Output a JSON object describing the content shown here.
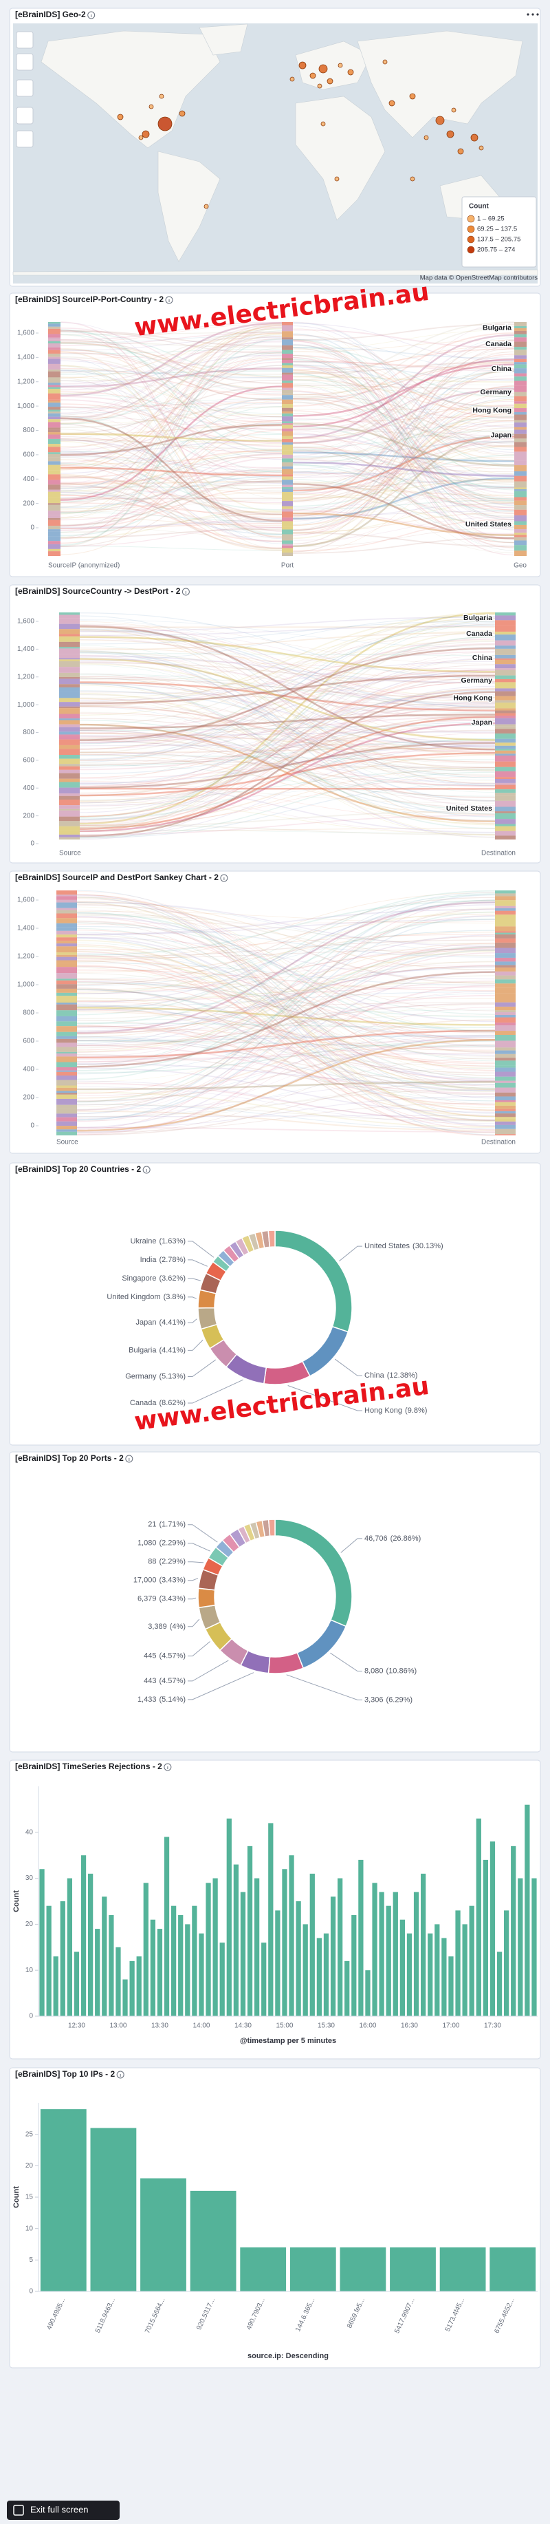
{
  "chart_data": [
    {
      "type": "map",
      "title": "[eBrainIDS] Geo-2",
      "legend_title": "Count",
      "legend_labels": [
        "1 – 69.25",
        "69.25 – 137.5",
        "137.5 – 205.75",
        "205.75 – 274"
      ],
      "legend_colors": [
        "#f6b26b",
        "#ec8a3a",
        "#dc6420",
        "#c23b0e"
      ],
      "attribution": "Map data © OpenStreetMap contributors"
    },
    {
      "type": "sankey",
      "title": "[eBrainIDS] SourceIP-Port-Country - 2",
      "ylim": [
        0,
        1600
      ],
      "yticks": [
        0,
        200,
        400,
        600,
        800,
        {
          "value": 1000,
          "label": "1,000"
        },
        {
          "value": 1200,
          "label": "1,200"
        },
        {
          "value": 1400,
          "label": "1,400"
        },
        {
          "value": 1600,
          "label": "1,600"
        }
      ],
      "axis_labels": [
        "SourceIP (anonymized)",
        "Port",
        "Geo"
      ],
      "node_labels": [
        "Bulgaria",
        "Canada",
        "China",
        "Germany",
        "Hong Kong",
        "Japan",
        "United States"
      ]
    },
    {
      "type": "sankey",
      "title": "[eBrainIDS] SourceCountry -> DestPort - 2",
      "ylim": [
        0,
        1600
      ],
      "yticks": [
        0,
        200,
        400,
        600,
        800,
        {
          "value": 1000,
          "label": "1,000"
        },
        {
          "value": 1200,
          "label": "1,200"
        },
        {
          "value": 1400,
          "label": "1,400"
        },
        {
          "value": 1600,
          "label": "1,600"
        }
      ],
      "axis_labels": [
        "Source",
        "Destination"
      ],
      "node_labels": [
        "Bulgaria",
        "Canada",
        "China",
        "Germany",
        "Hong Kong",
        "Japan",
        "United States"
      ]
    },
    {
      "type": "sankey",
      "title": "[eBrainIDS] SourceIP and DestPort Sankey Chart - 2",
      "ylim": [
        0,
        1600
      ],
      "yticks": [
        0,
        200,
        400,
        600,
        800,
        {
          "value": 1000,
          "label": "1,000"
        },
        {
          "value": 1200,
          "label": "1,200"
        },
        {
          "value": 1400,
          "label": "1,400"
        },
        {
          "value": 1600,
          "label": "1,600"
        }
      ],
      "axis_labels": [
        "Source",
        "Destination"
      ]
    },
    {
      "type": "donut",
      "title": "[eBrainIDS] Top 20 Countries - 2",
      "categories": [
        "United States",
        "China",
        "Hong Kong",
        "Canada",
        "Germany",
        "Bulgaria",
        "Japan",
        "United Kingdom",
        "Singapore",
        "India",
        "Ukraine",
        null,
        null,
        null,
        null,
        null,
        null,
        null,
        null,
        null
      ],
      "values": [
        30.13,
        12.38,
        9.8,
        8.62,
        5.13,
        4.41,
        4.41,
        3.8,
        3.62,
        2.78,
        1.63,
        1.6,
        1.6,
        1.5,
        1.5,
        1.5,
        1.4,
        1.4,
        1.4,
        1.39
      ],
      "value_labels": [
        "(30.13%)",
        "(12.38%)",
        "(9.8%)",
        "(8.62%)",
        "(5.13%)",
        "(4.41%)",
        "(4.41%)",
        "(3.8%)",
        "(3.62%)",
        "(2.78%)",
        "(1.63%)",
        null,
        null,
        null,
        null,
        null,
        null,
        null,
        null,
        null
      ],
      "colors": [
        "#54b399",
        "#6092c0",
        "#d36086",
        "#9170b8",
        "#ca8eae",
        "#d6bf57",
        "#b9a888",
        "#da8b45",
        "#aa6556",
        "#e7664c",
        "#7bc8b3",
        "#8fb0d6",
        "#e291ae",
        "#b29bcf",
        "#dbb3c8",
        "#e2d389",
        "#d0c5b0",
        "#e8b28b",
        "#c9a198",
        "#f0a393"
      ]
    },
    {
      "type": "donut",
      "title": "[eBrainIDS] Top 20 Ports - 2",
      "categories": [
        "46,706",
        "8,080",
        "3,306",
        "1,433",
        "443",
        "445",
        "3,389",
        "6,379",
        "17,000",
        "88",
        "1,080",
        "21",
        null,
        null,
        null,
        null,
        null,
        null,
        null,
        null
      ],
      "values": [
        26.86,
        10.86,
        6.29,
        5.14,
        4.57,
        4.57,
        4,
        3.43,
        3.43,
        2.29,
        2.29,
        1.71,
        1.71,
        1.71,
        1.14,
        1.14,
        1.14,
        1.14,
        1.14,
        1.14
      ],
      "value_labels": [
        "(26.86%)",
        "(10.86%)",
        "(6.29%)",
        "(5.14%)",
        "(4.57%)",
        "(4.57%)",
        "(4%)",
        "(3.43%)",
        "(3.43%)",
        "(2.29%)",
        "(2.29%)",
        "(1.71%)",
        null,
        null,
        null,
        null,
        null,
        null,
        null,
        null
      ],
      "colors": [
        "#54b399",
        "#6092c0",
        "#d36086",
        "#9170b8",
        "#ca8eae",
        "#d6bf57",
        "#b9a888",
        "#da8b45",
        "#aa6556",
        "#e7664c",
        "#7bc8b3",
        "#8fb0d6",
        "#e291ae",
        "#b29bcf",
        "#dbb3c8",
        "#e2d389",
        "#d0c5b0",
        "#e8b28b",
        "#c9a198",
        "#f0a393"
      ]
    },
    {
      "type": "bar",
      "title": "[eBrainIDS] TimeSeries Rejections - 2",
      "xlabel": "@timestamp per 5 minutes",
      "ylabel": "Count",
      "categories": [
        null,
        null,
        null,
        null,
        null,
        "12:30",
        null,
        null,
        null,
        null,
        null,
        "13:00",
        null,
        null,
        null,
        null,
        null,
        "13:30",
        null,
        null,
        null,
        null,
        null,
        "14:00",
        null,
        null,
        null,
        null,
        null,
        "14:30",
        null,
        null,
        null,
        null,
        null,
        "15:00",
        null,
        null,
        null,
        null,
        null,
        "15:30",
        null,
        null,
        null,
        null,
        null,
        "16:00",
        null,
        null,
        null,
        null,
        null,
        "16:30",
        null,
        null,
        null,
        null,
        null,
        "17:00",
        null,
        null,
        null,
        null,
        null,
        "17:30",
        null,
        null,
        null,
        null,
        null,
        null
      ],
      "values": [
        32,
        24,
        13,
        25,
        30,
        14,
        35,
        31,
        19,
        26,
        22,
        15,
        8,
        12,
        13,
        29,
        21,
        19,
        39,
        24,
        22,
        20,
        24,
        18,
        29,
        30,
        16,
        43,
        33,
        27,
        37,
        30,
        16,
        42,
        23,
        32,
        35,
        25,
        20,
        31,
        17,
        18,
        26,
        30,
        12,
        22,
        34,
        10,
        29,
        27,
        24,
        27,
        21,
        18,
        27,
        31,
        18,
        20,
        17,
        13,
        23,
        20,
        24,
        43,
        34,
        38,
        14,
        23,
        37,
        30,
        46,
        30
      ],
      "color": "#54b399",
      "ylim": [
        0,
        50
      ],
      "yticks": [
        0,
        10,
        20,
        30,
        40
      ]
    },
    {
      "type": "bar",
      "title": "[eBrainIDS] Top 10 IPs - 2",
      "xlabel": "source.ip: Descending",
      "ylabel": "Count",
      "categories": [
        "490.4985...",
        "5118.9463...",
        "7015.5664...",
        "920.5317...",
        "490.7903...",
        "144.6.365...",
        "8659.fe5...",
        "5417.9907...",
        "5173.4f45...",
        "6755.4652..."
      ],
      "values": [
        29,
        26,
        18,
        16,
        7,
        7,
        7,
        7,
        7,
        7
      ],
      "color": "#54b399",
      "ylim": [
        0,
        30
      ],
      "yticks": [
        0,
        5,
        10,
        15,
        20,
        25
      ]
    }
  ],
  "watermark": "www.electricbrain.au",
  "controls": {
    "exit_full_screen": "Exit full screen"
  }
}
